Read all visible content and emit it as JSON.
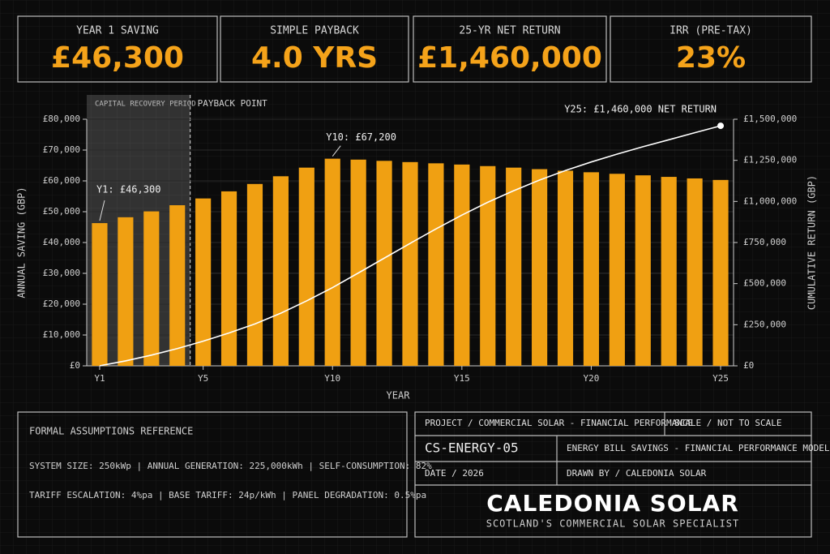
{
  "kpis": [
    {
      "label": "YEAR 1 SAVING",
      "value": "£46,300"
    },
    {
      "label": "SIMPLE PAYBACK",
      "value": "4.0 YRS"
    },
    {
      "label": "25-YR NET RETURN",
      "value": "£1,460,000"
    },
    {
      "label": "IRR (PRE-TAX)",
      "value": "23%"
    }
  ],
  "chart_data": {
    "type": "bar_line",
    "x_label": "YEAR",
    "y_label": "ANNUAL SAVING (GBP)",
    "y2_label": "CUMULATIVE RETURN (GBP)",
    "categories": [
      "Y1",
      null,
      null,
      null,
      "Y5",
      null,
      null,
      null,
      null,
      "Y10",
      null,
      null,
      null,
      null,
      "Y15",
      null,
      null,
      null,
      null,
      "Y20",
      null,
      null,
      null,
      null,
      "Y25"
    ],
    "series": [
      {
        "type": "bar",
        "color": "#f0a012",
        "values": [
          46300,
          48200,
          50100,
          52100,
          54300,
          56600,
          59000,
          61500,
          64300,
          67200,
          66900,
          66500,
          66100,
          65700,
          65300,
          64800,
          64300,
          63800,
          63300,
          62800,
          62300,
          61800,
          61300,
          60800,
          60300
        ]
      },
      {
        "type": "line",
        "axis": "y2",
        "color": "#ffffff",
        "values": [
          0,
          30000,
          65000,
          105000,
          150000,
          200000,
          255000,
          320000,
          395000,
          476000,
          565000,
          655000,
          745000,
          833000,
          917000,
          995000,
          1065000,
          1130000,
          1188000,
          1240000,
          1288000,
          1333000,
          1375000,
          1418000,
          1460000
        ]
      }
    ],
    "ylim": [
      0,
      80000
    ],
    "yticks": [
      {
        "value": 0,
        "label": "£0"
      },
      {
        "value": 10000,
        "label": "£10,000"
      },
      {
        "value": 20000,
        "label": "£20,000"
      },
      {
        "value": 30000,
        "label": "£30,000"
      },
      {
        "value": 40000,
        "label": "£40,000"
      },
      {
        "value": 50000,
        "label": "£50,000"
      },
      {
        "value": 60000,
        "label": "£60,000"
      },
      {
        "value": 70000,
        "label": "£70,000"
      },
      {
        "value": 80000,
        "label": "£80,000"
      }
    ],
    "y2lim": [
      0,
      1500000
    ],
    "y2ticks": [
      {
        "value": 0,
        "label": "£0"
      },
      {
        "value": 250000,
        "label": "£250,000"
      },
      {
        "value": 500000,
        "label": "£500,000"
      },
      {
        "value": 750000,
        "label": "£750,000"
      },
      {
        "value": 1000000,
        "label": "£1,000,000"
      },
      {
        "value": 1250000,
        "label": "£1,250,000"
      },
      {
        "value": 1500000,
        "label": "£1,500,000"
      }
    ],
    "annotations": [
      "Y1: £46,300",
      "Y10: £67,200",
      "Y25: £1,460,000 NET RETURN"
    ],
    "region_labels": [
      "CAPITAL RECOVERY PERIOD",
      "PAYBACK POINT"
    ]
  },
  "assumptions": {
    "title": "FORMAL ASSUMPTIONS REFERENCE",
    "lines": [
      "SYSTEM SIZE: 250kWp | ANNUAL GENERATION: 225,000kWh | SELF-CONSUMPTION: 82%",
      "TARIFF ESCALATION: 4%pa | BASE TARIFF: 24p/kWh | PANEL DEGRADATION: 0.5%pa"
    ]
  },
  "title_block": {
    "project": "PROJECT / COMMERCIAL SOLAR - FINANCIAL PERFORMANCE",
    "scale": "SCALE / NOT TO SCALE",
    "code": "CS-ENERGY-05",
    "model": "ENERGY BILL SAVINGS - FINANCIAL PERFORMANCE MODEL",
    "date": "DATE / 2026",
    "drawn": "DRAWN BY / CALEDONIA SOLAR",
    "company": "CALEDONIA SOLAR",
    "tagline": "SCOTLAND'S COMMERCIAL SOLAR SPECIALIST"
  }
}
